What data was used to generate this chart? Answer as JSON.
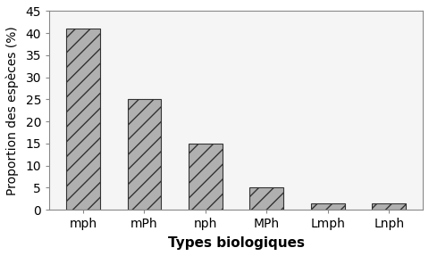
{
  "categories": [
    "mph",
    "mPh",
    "nph",
    "MPh",
    "Lmph",
    "Lnph"
  ],
  "values": [
    41,
    25,
    15,
    5,
    1.5,
    1.5
  ],
  "xlabel": "Types biologiques",
  "ylabel": "Proportion des espèces (%)",
  "ylim": [
    0,
    45
  ],
  "yticks": [
    0,
    5,
    10,
    15,
    20,
    25,
    30,
    35,
    40,
    45
  ],
  "bar_color": "#b0b0b0",
  "edge_color": "#333333",
  "background_color": "#f5f5f5",
  "figure_bg": "#ffffff",
  "hatch_pattern": "//",
  "xlabel_fontsize": 11,
  "ylabel_fontsize": 10,
  "tick_fontsize": 10
}
